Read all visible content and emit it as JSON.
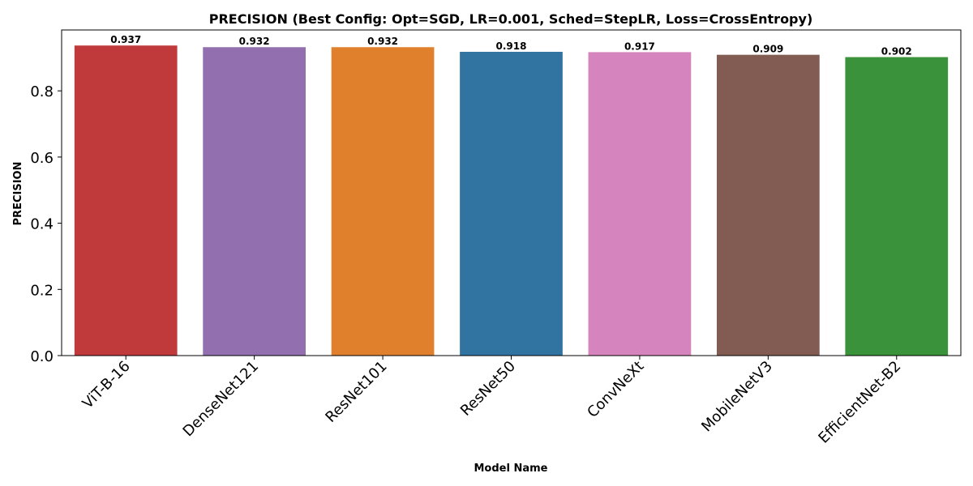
{
  "chart_data": {
    "type": "bar",
    "title": "PRECISION (Best Config: Opt=SGD, LR=0.001, Sched=StepLR, Loss=CrossEntropy)",
    "xlabel": "Model Name",
    "ylabel": "PRECISION",
    "categories": [
      "ViT-B-16",
      "DenseNet121",
      "ResNet101",
      "ResNet50",
      "ConvNeXt",
      "MobileNetV3",
      "EfficientNet-B2"
    ],
    "values": [
      0.937,
      0.932,
      0.932,
      0.918,
      0.917,
      0.909,
      0.902
    ],
    "value_labels": [
      "0.937",
      "0.932",
      "0.932",
      "0.918",
      "0.917",
      "0.909",
      "0.902"
    ],
    "colors": [
      "#c0393b",
      "#9270b0",
      "#e1802c",
      "#3274a1",
      "#d684bd",
      "#825b53",
      "#3a923a"
    ],
    "ylim": [
      0,
      0.984
    ],
    "yticks": [
      0.0,
      0.2,
      0.4,
      0.6,
      0.8
    ],
    "ytick_labels": [
      "0.0",
      "0.2",
      "0.4",
      "0.6",
      "0.8"
    ],
    "grid": false,
    "legend": false
  }
}
